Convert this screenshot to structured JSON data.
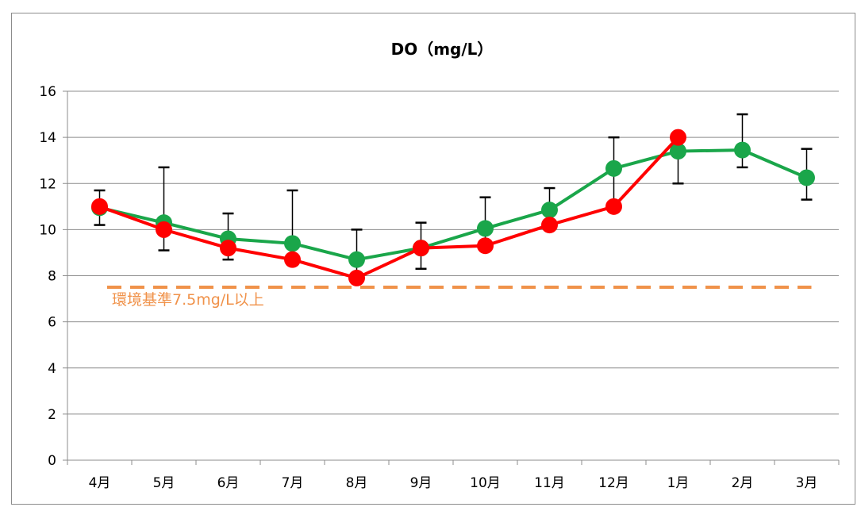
{
  "chart_data": {
    "type": "line",
    "title": "DO（mg/L）",
    "categories": [
      "4月",
      "5月",
      "6月",
      "7月",
      "8月",
      "9月",
      "10月",
      "11月",
      "12月",
      "1月",
      "2月",
      "3月"
    ],
    "ylim": [
      0,
      16
    ],
    "yticks": [
      0,
      2,
      4,
      6,
      8,
      10,
      12,
      14,
      16
    ],
    "grid": true,
    "series": [
      {
        "color": "#1aa64a",
        "values": [
          10.95,
          10.3,
          9.6,
          9.4,
          8.7,
          9.2,
          10.05,
          10.85,
          12.65,
          13.4,
          13.45,
          12.25
        ],
        "error_high": [
          11.7,
          12.7,
          10.7,
          11.7,
          10.0,
          10.3,
          11.4,
          11.8,
          14.0,
          14.0,
          15.0,
          13.5
        ],
        "error_low": [
          10.2,
          9.1,
          8.7,
          8.7,
          7.9,
          8.3,
          9.2,
          10.1,
          11.0,
          12.0,
          12.7,
          11.3
        ]
      },
      {
        "color": "#ff0000",
        "values": [
          11.0,
          10.0,
          9.2,
          8.7,
          7.9,
          9.2,
          9.3,
          10.2,
          11.0,
          14.0,
          null,
          null
        ]
      }
    ],
    "reference_line": {
      "value": 7.5,
      "label": "環境基準7.5mg/L以上",
      "color": "#f0924a"
    }
  }
}
